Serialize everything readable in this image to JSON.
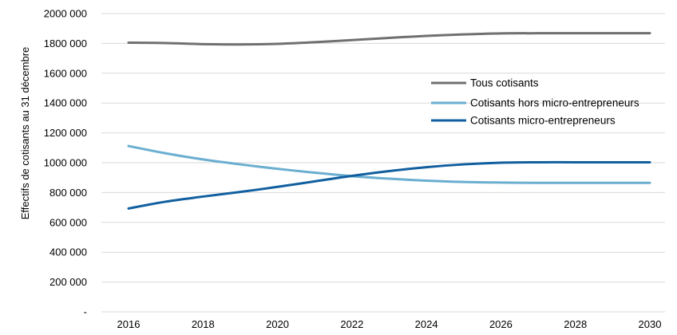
{
  "chart_data": {
    "type": "line",
    "title": "",
    "xlabel": "",
    "ylabel": "Effectifs de cotisants au 31 décembre",
    "x": [
      2016,
      2017,
      2018,
      2019,
      2020,
      2021,
      2022,
      2023,
      2024,
      2025,
      2026,
      2027,
      2028,
      2029,
      2030
    ],
    "x_tick_labels": [
      "2016",
      "2018",
      "2020",
      "2022",
      "2024",
      "2026",
      "2028",
      "2030"
    ],
    "x_tick_values": [
      2016,
      2018,
      2020,
      2022,
      2024,
      2026,
      2028,
      2030
    ],
    "y_tick_labels": [
      "-",
      "200 000",
      "400 000",
      "600 000",
      "800 000",
      "1000 000",
      "1200 000",
      "1400 000",
      "1600 000",
      "1800 000",
      "2000 000"
    ],
    "y_tick_values": [
      0,
      200000,
      400000,
      600000,
      800000,
      1000000,
      1200000,
      1400000,
      1600000,
      1800000,
      2000000
    ],
    "ylim": [
      0,
      2000000
    ],
    "xlim": [
      2016,
      2030
    ],
    "grid": "horizontal",
    "legend_position": "right",
    "series": [
      {
        "name": "Tous cotisants",
        "color": "#707070",
        "values": [
          1805000,
          1802000,
          1795000,
          1793000,
          1797000,
          1808000,
          1822000,
          1837000,
          1850000,
          1860000,
          1867000,
          1868000,
          1868000,
          1868000,
          1868000
        ]
      },
      {
        "name": "Cotisants hors micro-entrepreneurs",
        "color": "#6aaed0",
        "values": [
          1112000,
          1063000,
          1022000,
          989000,
          959000,
          933000,
          910000,
          893000,
          880000,
          871000,
          867000,
          865000,
          865000,
          865000,
          865000
        ]
      },
      {
        "name": "Cotisants micro-entrepreneurs",
        "color": "#115f9f",
        "values": [
          693000,
          739000,
          773000,
          804000,
          838000,
          875000,
          912000,
          944000,
          970000,
          989000,
          1000000,
          1003000,
          1003000,
          1003000,
          1003000
        ]
      }
    ]
  }
}
